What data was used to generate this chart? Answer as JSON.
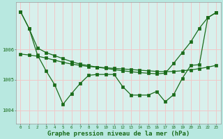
{
  "background_color": "#b8e8e0",
  "plot_bg_color": "#d8f0ec",
  "grid_color": "#f0c8c8",
  "line_color": "#1a6b1a",
  "xlabel": "Graphe pression niveau de la mer (hPa)",
  "xlabel_fontsize": 6.5,
  "xlim": [
    -0.5,
    23.5
  ],
  "ylim": [
    1003.55,
    1007.55
  ],
  "yticks": [
    1004,
    1005,
    1006
  ],
  "xticks": [
    0,
    1,
    2,
    3,
    4,
    5,
    6,
    7,
    8,
    9,
    10,
    11,
    12,
    13,
    14,
    15,
    16,
    17,
    18,
    19,
    20,
    21,
    22,
    23
  ],
  "line1_y": [
    1007.25,
    1006.7,
    1006.05,
    1005.9,
    1005.8,
    1005.7,
    1005.6,
    1005.52,
    1005.47,
    1005.42,
    1005.38,
    1005.34,
    1005.3,
    1005.27,
    1005.24,
    1005.22,
    1005.2,
    1005.22,
    1005.55,
    1005.9,
    1006.25,
    1006.7,
    1007.05,
    1007.22
  ],
  "line2_y": [
    1005.85,
    1005.82,
    1005.78,
    1005.72,
    1005.65,
    1005.58,
    1005.52,
    1005.48,
    1005.44,
    1005.42,
    1005.4,
    1005.38,
    1005.36,
    1005.34,
    1005.32,
    1005.3,
    1005.28,
    1005.27,
    1005.28,
    1005.3,
    1005.33,
    1005.37,
    1005.42,
    1005.48
  ],
  "line3_y": [
    1007.25,
    1006.7,
    1005.82,
    1005.3,
    1004.85,
    1004.2,
    1004.55,
    1004.88,
    1005.15,
    1005.18,
    1005.18,
    1005.18,
    1004.78,
    1004.5,
    1004.5,
    1004.5,
    1004.62,
    1004.28,
    1004.52,
    1005.05,
    1005.48,
    1005.5,
    1007.05,
    1007.22
  ],
  "marker_size": 2.2,
  "line_width": 0.9
}
